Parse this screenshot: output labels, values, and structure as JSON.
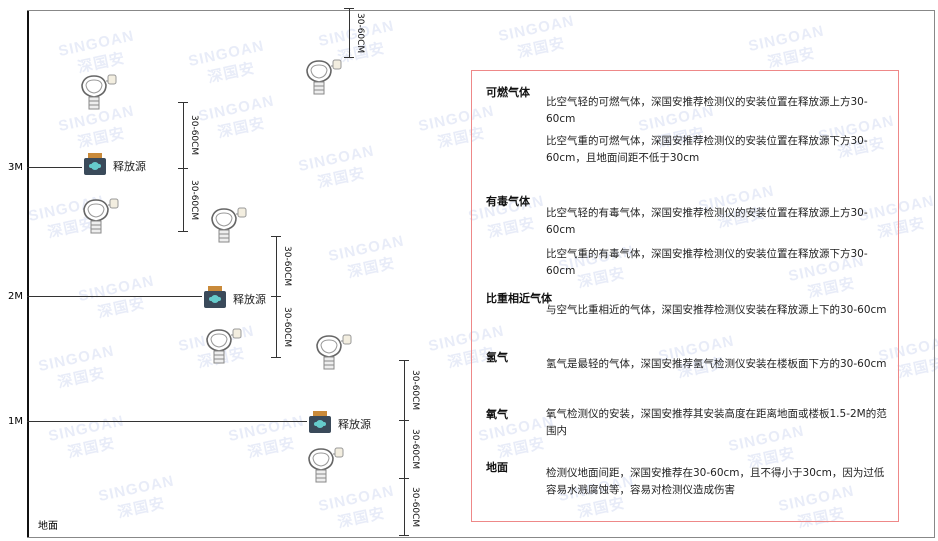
{
  "watermark": {
    "brand": "SINGOAN",
    "cn": "深国安"
  },
  "levels": {
    "l3": "3M",
    "l2": "2M",
    "l1": "1M",
    "ground": "地面"
  },
  "dimension_label": "30-60CM",
  "source_label": "释放源",
  "notes": [
    {
      "title": "可燃气体",
      "items": [
        "比空气轻的可燃气体，深国安推荐检测仪的安装位置在释放源上方30-60cm",
        "比空气重的可燃气体，深国安推荐检测仪的安装位置在释放源下方30-60cm，且地面间距不低于30cm"
      ]
    },
    {
      "title": "有毒气体",
      "items": [
        "比空气轻的有毒气体，深国安推荐检测仪的安装位置在释放源上方30-60cm",
        "比空气重的有毒气体，深国安推荐检测仪的安装位置在释放源下方30-60cm"
      ]
    },
    {
      "title": "比重相近气体",
      "items": [
        "与空气比重相近的气体，深国安推荐检测仪安装在释放源上下的30-60cm"
      ]
    },
    {
      "title": "氢气",
      "items": [
        "氢气是最轻的气体，深国安推荐氢气检测仪安装在楼板面下方的30-60cm"
      ]
    },
    {
      "title": "氧气",
      "items": [
        "氧气检测仪的安装，深国安推荐其安装高度在距离地面或楼板1.5-2M的范围内"
      ]
    },
    {
      "title": "地面",
      "items": [
        "检测仪地面间距，深国安推荐在30-60cm，且不得小于30cm，因为过低容易水溅腐蚀等，容易对检测仪造成伤害"
      ]
    }
  ],
  "colors": {
    "frame": "#e88888",
    "source_body": "#3a4a5a",
    "source_cap": "#c98a3a"
  }
}
